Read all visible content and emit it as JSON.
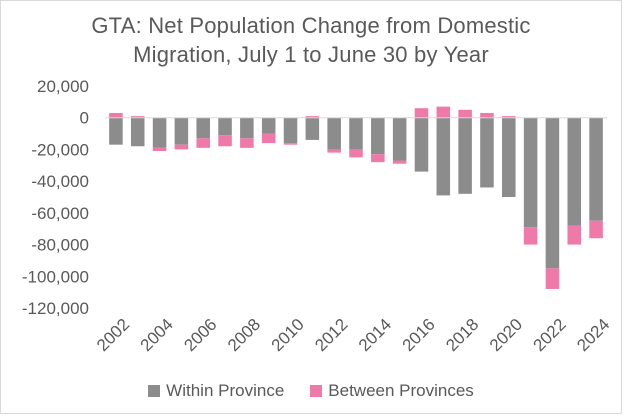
{
  "chart_data": {
    "type": "bar",
    "stacked": true,
    "title": "GTA: Net Population Change from Domestic Migration, July 1 to June 30 by Year",
    "title_lines": [
      "GTA: Net Population Change from Domestic",
      "Migration, July 1 to June 30 by Year"
    ],
    "xlabel": "",
    "ylabel": "",
    "ylim": [
      -120000,
      20000
    ],
    "yticks": [
      20000,
      0,
      -20000,
      -40000,
      -60000,
      -80000,
      -100000,
      -120000
    ],
    "ytick_labels": [
      "20,000",
      "0",
      "-20,000",
      "-40,000",
      "-60,000",
      "-80,000",
      "-100,000",
      "-120,000"
    ],
    "x_tick_labels": [
      "2002",
      "2004",
      "2006",
      "2008",
      "2010",
      "2012",
      "2014",
      "2016",
      "2018",
      "2020",
      "2022",
      "2024"
    ],
    "categories": [
      "2002",
      "2003",
      "2004",
      "2005",
      "2006",
      "2007",
      "2008",
      "2009",
      "2010",
      "2011",
      "2012",
      "2013",
      "2014",
      "2015",
      "2016",
      "2017",
      "2018",
      "2019",
      "2020",
      "2021",
      "2022",
      "2023",
      "2024"
    ],
    "series": [
      {
        "name": "Within Province",
        "color": "#8c8c8c",
        "values": [
          -17000,
          -18000,
          -19000,
          -17000,
          -13000,
          -11000,
          -13000,
          -10000,
          -16000,
          -14000,
          -20000,
          -20000,
          -23000,
          -27000,
          -34000,
          -49000,
          -48000,
          -44000,
          -50000,
          -69000,
          -95000,
          -68000,
          -65000
        ]
      },
      {
        "name": "Between Provinces",
        "color": "#ef79a8",
        "values": [
          3000,
          1000,
          -2000,
          -3000,
          -6000,
          -7000,
          -6000,
          -6000,
          -1000,
          1000,
          -2000,
          -5000,
          -5000,
          -2000,
          6000,
          7000,
          5000,
          3000,
          1000,
          -11000,
          -13000,
          -12000,
          -11000
        ]
      }
    ],
    "grid": false,
    "legend_position": "bottom"
  }
}
